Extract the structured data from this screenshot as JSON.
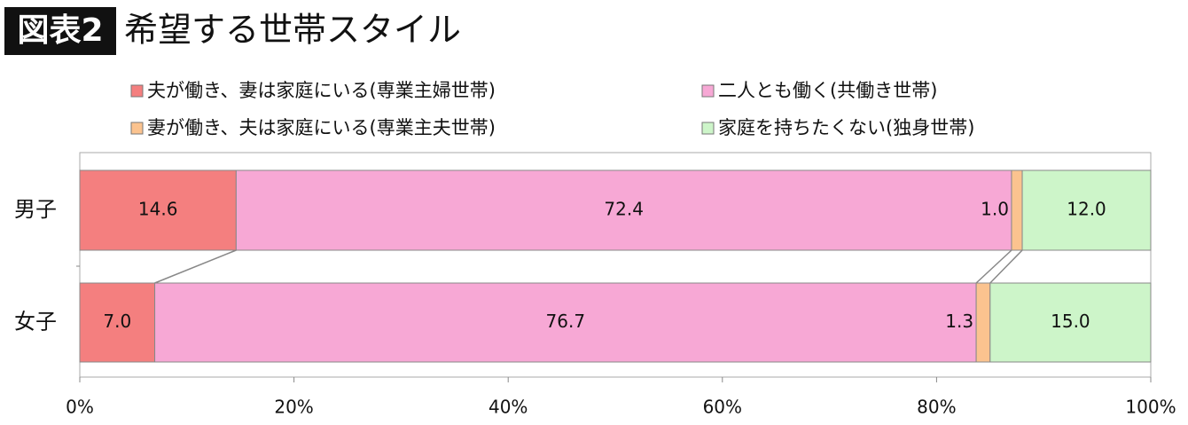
{
  "chart_data": {
    "type": "bar",
    "orientation": "horizontal",
    "stacked": true,
    "label": "図表2",
    "title": "希望する世帯スタイル",
    "categories": [
      "男子",
      "女子"
    ],
    "series": [
      {
        "name": "夫が働き、妻は家庭にいる(専業主婦世帯)",
        "color": "#f47f7f",
        "values": [
          14.6,
          7.0
        ],
        "value_labels": [
          "14.6",
          "7.0"
        ]
      },
      {
        "name": "二人とも働く(共働き世帯)",
        "color": "#f7a8d5",
        "values": [
          72.4,
          76.7
        ],
        "value_labels": [
          "72.4",
          "76.7"
        ]
      },
      {
        "name": "妻が働き、夫は家庭にいる(専業主夫世帯)",
        "color": "#fbc38f",
        "values": [
          1.0,
          1.3
        ],
        "value_labels": [
          "1.0",
          "1.3"
        ]
      },
      {
        "name": "家庭を持ちたくない(独身世帯)",
        "color": "#cdf5c9",
        "values": [
          12.0,
          15.0
        ],
        "value_labels": [
          "12.0",
          "15.0"
        ]
      }
    ],
    "xlim": [
      0,
      100
    ],
    "xticks": [
      {
        "value": 0,
        "label": "0%"
      },
      {
        "value": 20,
        "label": "20%"
      },
      {
        "value": 40,
        "label": "40%"
      },
      {
        "value": 60,
        "label": "60%"
      },
      {
        "value": 80,
        "label": "80%"
      },
      {
        "value": 100,
        "label": "100%"
      }
    ]
  }
}
